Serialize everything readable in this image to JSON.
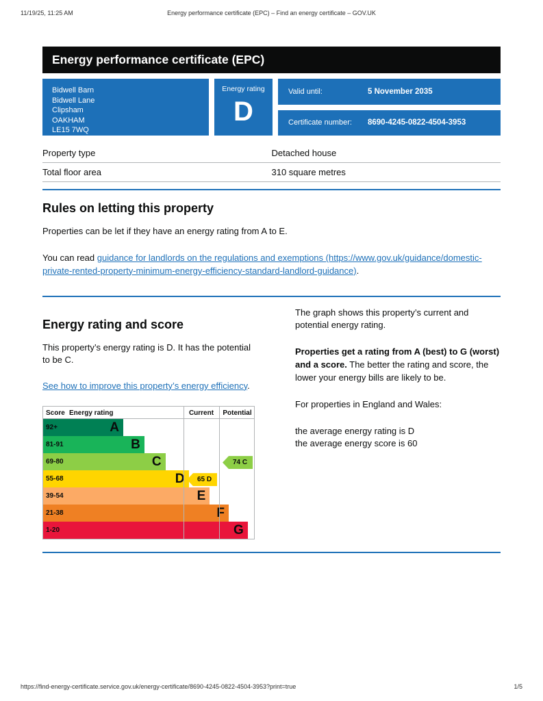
{
  "colors": {
    "govuk_blue": "#1d70b8",
    "banner_black": "#0b0c0c",
    "link": "#1d70b8",
    "border_grey": "#b1b4b6"
  },
  "print_header": {
    "datetime": "11/19/25, 11:25 AM",
    "document_title": "Energy performance certificate (EPC) – Find an energy certificate – GOV.UK"
  },
  "banner": {
    "title": "Energy performance certificate (EPC)"
  },
  "summary": {
    "address_lines": [
      "Bidwell Barn",
      "Bidwell Lane",
      "Clipsham",
      "OAKHAM",
      "LE15 7WQ"
    ],
    "energy_rating_label": "Energy rating",
    "energy_rating": "D",
    "valid_until_label": "Valid until:",
    "valid_until": "5 November 2035",
    "certificate_number_label": "Certificate number:",
    "certificate_number": "8690-4245-0822-4504-3953"
  },
  "property_details": {
    "rows": [
      {
        "label": "Property type",
        "value": "Detached house"
      },
      {
        "label": "Total floor area",
        "value": "310 square metres"
      }
    ]
  },
  "rules_section": {
    "heading": "Rules on letting this property",
    "para1": "Properties can be let if they have an energy rating from A to E.",
    "para2_prefix": "You can read ",
    "link_text": "guidance for landlords on the regulations and exemptions (https://www.gov.uk/guidance/domestic-private-rented-property-minimum-energy-efficiency-standard-landlord-guidance)",
    "para2_suffix": "."
  },
  "rating_section": {
    "heading": "Energy rating and score",
    "para1": "This property’s energy rating is D. It has the potential to be C.",
    "improve_link_text": "See how to improve this property’s energy efficiency",
    "improve_link_suffix": ".",
    "graph_para1": "The graph shows this property’s current and potential energy rating.",
    "graph_para2_bold": "Properties get a rating from A (best) to G (worst) and a score.",
    "graph_para2_rest": " The better the rating and score, the lower your energy bills are likely to be.",
    "region_note": "For properties in England and Wales:",
    "average_rating_line": "the average energy rating is D",
    "average_score_line": "the average energy score is 60"
  },
  "chart_data": {
    "type": "bar",
    "title": "Energy efficiency rating bands with current and potential scores",
    "headers": {
      "score": "Score",
      "rating": "Energy rating",
      "current": "Current",
      "potential": "Potential"
    },
    "bands": [
      {
        "score": "92+",
        "letter": "A",
        "color": "#008054",
        "width_pct": 38
      },
      {
        "score": "81-91",
        "letter": "B",
        "color": "#19b459",
        "width_pct": 48
      },
      {
        "score": "69-80",
        "letter": "C",
        "color": "#8dce46",
        "width_pct": 58
      },
      {
        "score": "55-68",
        "letter": "D",
        "color": "#ffd500",
        "width_pct": 69
      },
      {
        "score": "39-54",
        "letter": "E",
        "color": "#fcaa65",
        "width_pct": 79
      },
      {
        "score": "21-38",
        "letter": "F",
        "color": "#ef8023",
        "width_pct": 88
      },
      {
        "score": "1-20",
        "letter": "G",
        "color": "#e9153b",
        "width_pct": 97
      }
    ],
    "current": {
      "score": 65,
      "letter": "D",
      "color": "#ffd500"
    },
    "potential": {
      "score": 74,
      "letter": "C",
      "color": "#8dce46"
    }
  },
  "footer": {
    "url": "https://find-energy-certificate.service.gov.uk/energy-certificate/8690-4245-0822-4504-3953?print=true",
    "page_indicator": "1/5"
  }
}
